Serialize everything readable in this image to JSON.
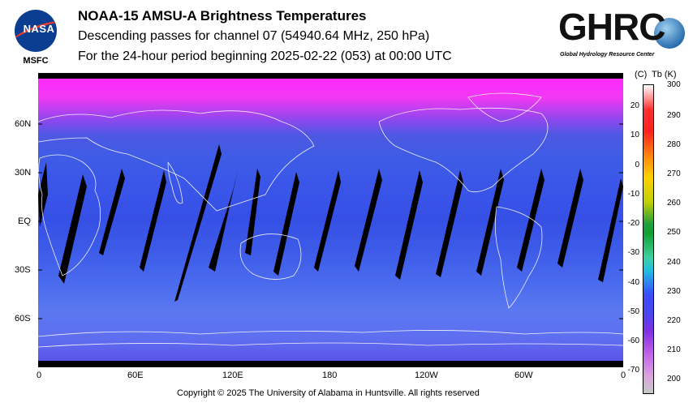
{
  "header": {
    "agency": "NASA",
    "center": "MSFC",
    "title": "NOAA-15 AMSU-A Brightness Temperatures",
    "subtitle1": "Descending passes for channel 07 (54940.64 MHz, 250 hPa)",
    "subtitle2": "For the 24-hour period beginning 2025-02-22 (053) at 00:00 UTC",
    "ghrc_logo": "GHRC",
    "ghrc_name": "Global Hydrology Resource Center"
  },
  "map": {
    "lat_labels": [
      "60N",
      "30N",
      "EQ",
      "30S",
      "60S"
    ],
    "lon_labels": [
      "0",
      "60E",
      "120E",
      "180",
      "120W",
      "60W",
      "0"
    ]
  },
  "colorbar": {
    "celsius_header": "(C)",
    "kelvin_header": "Tb (K)",
    "celsius_ticks": [
      "20",
      "10",
      "0",
      "-10",
      "-20",
      "-30",
      "-40",
      "-50",
      "-60",
      "-70"
    ],
    "kelvin_ticks": [
      "300",
      "290",
      "280",
      "270",
      "260",
      "250",
      "240",
      "230",
      "220",
      "210",
      "200"
    ],
    "colors": {
      "top": "#ffffff",
      "warm": "#ff2020",
      "mid": "#20a040",
      "cool": "#3a4cff",
      "cold": "#c8c8c8"
    }
  },
  "footer": {
    "copyright": "Copyright © 2025 The University of Alabama in Huntsville.  All rights reserved"
  }
}
